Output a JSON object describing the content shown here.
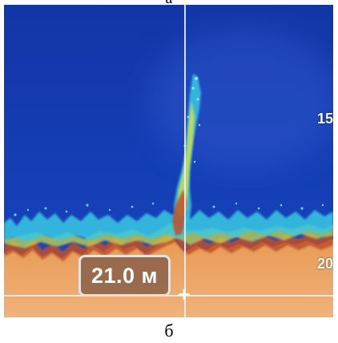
{
  "captions": {
    "top": "а",
    "bottom": "б"
  },
  "sonar": {
    "depth_scale_labels": [
      "15",
      "20"
    ],
    "cursor_depth_readout": "21.0 м",
    "cursor_icon": "plus-icon",
    "colors": {
      "water": "#1536a8",
      "bottom": "#e6a25e",
      "signal_weak": "#3fd6e6",
      "signal_mid": "#e6e04a",
      "signal_strong": "#c8441e"
    }
  }
}
